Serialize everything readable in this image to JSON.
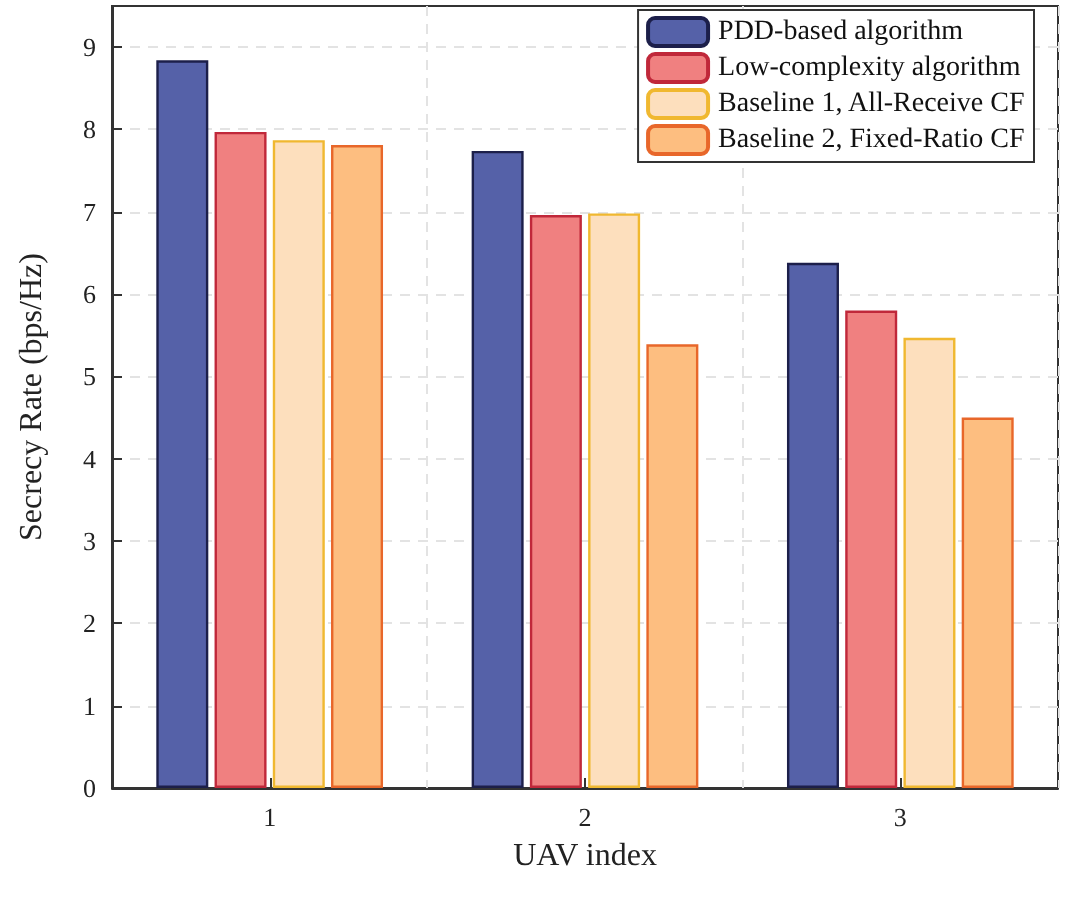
{
  "chart_data": {
    "type": "bar",
    "xlabel": "UAV index",
    "ylabel": "Secrecy Rate (bps/Hz)",
    "categories": [
      "1",
      "2",
      "3"
    ],
    "series": [
      {
        "name": "PDD-based algorithm",
        "color": "#5561a8",
        "values": [
          8.84,
          7.74,
          6.38
        ]
      },
      {
        "name": "Low-complexity algorithm",
        "color": "#f08080",
        "values": [
          7.97,
          6.96,
          5.8
        ]
      },
      {
        "name": "Baseline 1, All-Receive CF",
        "color": "#fddfbd",
        "values": [
          7.87,
          6.98,
          5.47
        ]
      },
      {
        "name": "Baseline 2, Fixed-Ratio CF",
        "color": "#fdbe80",
        "values": [
          7.81,
          5.39,
          4.5
        ]
      }
    ],
    "ylim": [
      0,
      9.5
    ],
    "yticks": [
      0,
      1,
      2,
      3,
      4,
      5,
      6,
      7,
      8,
      9
    ],
    "grid": true,
    "legend": "top right"
  }
}
